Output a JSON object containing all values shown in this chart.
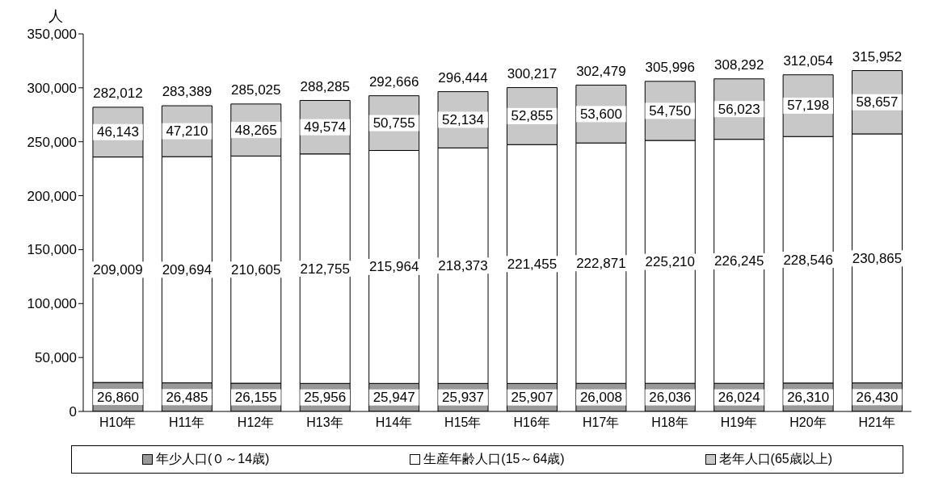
{
  "chart_data": {
    "type": "bar",
    "stacked": true,
    "ylabel": "人",
    "categories": [
      "H10年",
      "H11年",
      "H12年",
      "H13年",
      "H14年",
      "H15年",
      "H16年",
      "H17年",
      "H18年",
      "H19年",
      "H20年",
      "H21年"
    ],
    "series": [
      {
        "name": "年少人口(０～14歳)",
        "color": "#999999",
        "values": [
          26860,
          26485,
          26155,
          25956,
          25947,
          25937,
          25907,
          26008,
          26036,
          26024,
          26310,
          26430
        ],
        "value_labels": [
          "26,860",
          "26,485",
          "26,155",
          "25,956",
          "25,947",
          "25,937",
          "25,907",
          "26,008",
          "26,036",
          "26,024",
          "26,310",
          "26,430"
        ]
      },
      {
        "name": "生産年齢人口(15～64歳)",
        "color": "#ffffff",
        "values": [
          209009,
          209694,
          210605,
          212755,
          215964,
          218373,
          221455,
          222871,
          225210,
          226245,
          228546,
          230865
        ],
        "value_labels": [
          "209,009",
          "209,694",
          "210,605",
          "212,755",
          "215,964",
          "218,373",
          "221,455",
          "222,871",
          "225,210",
          "226,245",
          "228,546",
          "230,865"
        ]
      },
      {
        "name": "老年人口(65歳以上)",
        "color": "#c8c8c8",
        "values": [
          46143,
          47210,
          48265,
          49574,
          50755,
          52134,
          52855,
          53600,
          54750,
          56023,
          57198,
          58657
        ],
        "value_labels": [
          "46,143",
          "47,210",
          "48,265",
          "49,574",
          "50,755",
          "52,134",
          "52,855",
          "53,600",
          "54,750",
          "56,023",
          "57,198",
          "58,657"
        ]
      }
    ],
    "totals": [
      "282,012",
      "283,389",
      "285,025",
      "288,285",
      "292,666",
      "296,444",
      "300,217",
      "302,479",
      "305,996",
      "308,292",
      "312,054",
      "315,952"
    ],
    "ylim": [
      0,
      350000
    ],
    "yticks": [
      {
        "value": 0,
        "label": "0"
      },
      {
        "value": 50000,
        "label": "50,000"
      },
      {
        "value": 100000,
        "label": "100,000"
      },
      {
        "value": 150000,
        "label": "150,000"
      },
      {
        "value": 200000,
        "label": "200,000"
      },
      {
        "value": 250000,
        "label": "250,000"
      },
      {
        "value": 300000,
        "label": "300,000"
      },
      {
        "value": 350000,
        "label": "350,000"
      }
    ],
    "legend": "bottom"
  }
}
